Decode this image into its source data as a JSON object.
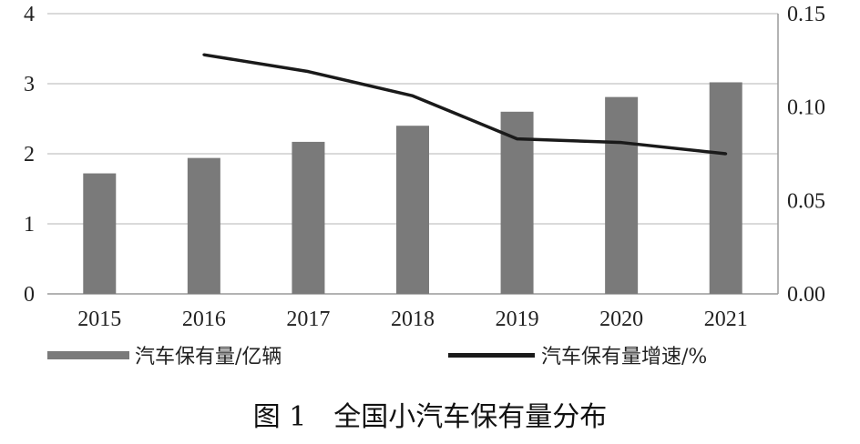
{
  "caption": "图 1　全国小汽车保有量分布",
  "chart_data": {
    "type": "bar",
    "categories": [
      "2015",
      "2016",
      "2017",
      "2018",
      "2019",
      "2020",
      "2021"
    ],
    "series": [
      {
        "name": "汽车保有量/亿辆",
        "type": "bar",
        "axis": "left",
        "color": "#7a7a7a",
        "values": [
          1.72,
          1.94,
          2.17,
          2.4,
          2.6,
          2.81,
          3.02
        ]
      },
      {
        "name": "汽车保有量增速/%",
        "type": "line",
        "axis": "right",
        "color": "#1a1a1a",
        "values": [
          null,
          0.128,
          0.119,
          0.106,
          0.083,
          0.081,
          0.075
        ]
      }
    ],
    "y_left": {
      "ylim": [
        0,
        4
      ],
      "ticks": [
        "0",
        "1",
        "2",
        "3",
        "4"
      ]
    },
    "y_right": {
      "ylim": [
        0,
        0.15
      ],
      "ticks": [
        "0.00",
        "0.05",
        "0.10",
        "0.15"
      ]
    },
    "grid": true,
    "legend_position": "bottom"
  }
}
